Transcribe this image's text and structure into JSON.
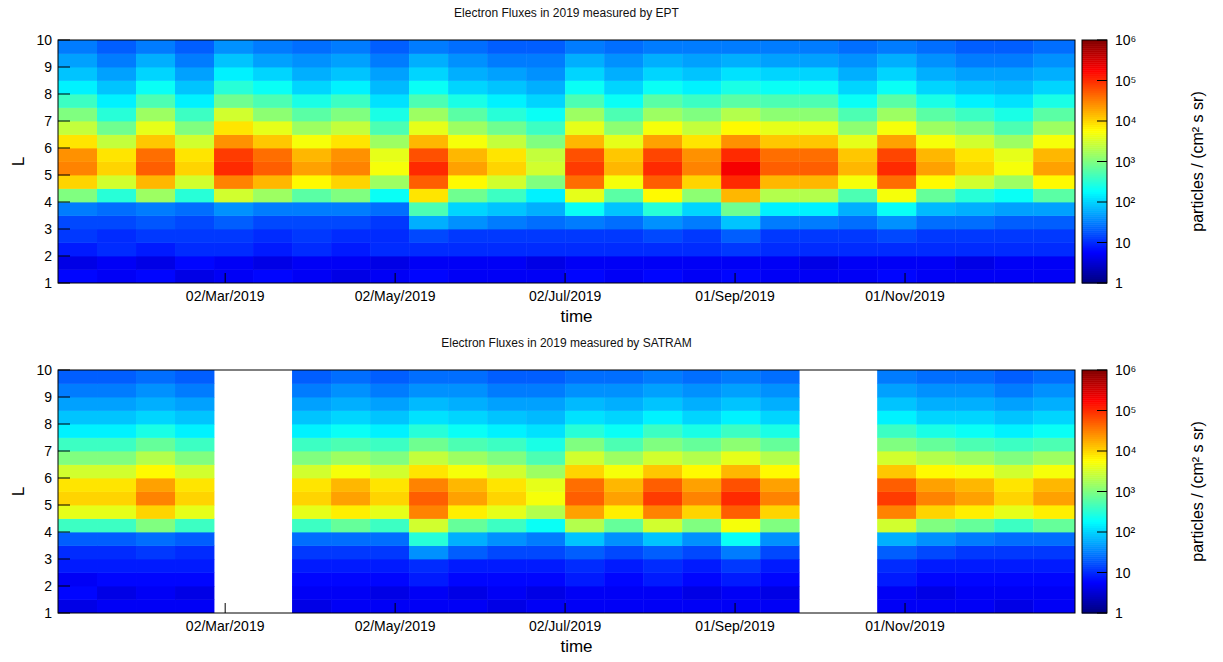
{
  "chart_data": [
    {
      "type": "heatmap",
      "title": "Electron Fluxes in 2019 measured by EPT",
      "x_label": "time",
      "y_label": "L",
      "xlim": [
        "2019-01-01",
        "2020-01-01"
      ],
      "xticks": [
        {
          "value": "2019-03-02",
          "label": "02/Mar/2019"
        },
        {
          "value": "2019-05-02",
          "label": "02/May/2019"
        },
        {
          "value": "2019-07-02",
          "label": "02/Jul/2019"
        },
        {
          "value": "2019-09-01",
          "label": "01/Sep/2019"
        },
        {
          "value": "2019-11-01",
          "label": "01/Nov/2019"
        }
      ],
      "ylim": [
        1,
        10
      ],
      "yticks": [
        1,
        2,
        3,
        4,
        5,
        6,
        7,
        8,
        9,
        10
      ],
      "x_bins": [
        "2019-01-01",
        "2019-01-15",
        "2019-01-29",
        "2019-02-12",
        "2019-02-26",
        "2019-03-12",
        "2019-03-26",
        "2019-04-09",
        "2019-04-23",
        "2019-05-07",
        "2019-05-21",
        "2019-06-04",
        "2019-06-18",
        "2019-07-02",
        "2019-07-16",
        "2019-07-30",
        "2019-08-13",
        "2019-08-27",
        "2019-09-10",
        "2019-09-24",
        "2019-10-08",
        "2019-10-22",
        "2019-11-05",
        "2019-11-19",
        "2019-12-03",
        "2019-12-17",
        "2020-01-01"
      ],
      "y_bins": [
        1,
        1.5,
        2,
        2.5,
        3,
        3.5,
        4,
        4.5,
        5,
        5.5,
        6,
        6.5,
        7,
        7.5,
        8,
        8.5,
        9,
        9.5,
        10
      ],
      "values": [
        [
          6,
          4,
          8,
          12,
          15,
          30,
          1000,
          10000,
          30000,
          25000,
          8000,
          2500,
          1000,
          400,
          150,
          80,
          50,
          30
        ],
        [
          5,
          5,
          10,
          10,
          15,
          25,
          300,
          3000,
          10000,
          8000,
          2500,
          800,
          300,
          150,
          80,
          50,
          30,
          20
        ],
        [
          6,
          4,
          8,
          12,
          18,
          30,
          1500,
          15000,
          50000,
          40000,
          12000,
          4000,
          1500,
          500,
          200,
          100,
          60,
          30
        ],
        [
          4,
          6,
          10,
          12,
          15,
          25,
          300,
          3000,
          10000,
          8000,
          3000,
          1000,
          400,
          150,
          80,
          50,
          30,
          20
        ],
        [
          5,
          5,
          10,
          12,
          20,
          40,
          3000,
          30000,
          100000,
          80000,
          25000,
          8000,
          3000,
          800,
          300,
          150,
          80,
          40
        ],
        [
          6,
          4,
          8,
          10,
          15,
          30,
          1500,
          15000,
          50000,
          40000,
          12000,
          4000,
          1200,
          500,
          200,
          100,
          50,
          30
        ],
        [
          5,
          5,
          10,
          12,
          15,
          30,
          600,
          6000,
          20000,
          15000,
          5000,
          1500,
          600,
          250,
          100,
          60,
          40,
          25
        ],
        [
          4,
          5,
          8,
          10,
          15,
          30,
          1000,
          10000,
          30000,
          25000,
          8000,
          2500,
          1000,
          400,
          150,
          80,
          50,
          30
        ],
        [
          5,
          4,
          10,
          10,
          12,
          25,
          200,
          1500,
          5000,
          4000,
          1500,
          500,
          250,
          120,
          70,
          50,
          30,
          20
        ],
        [
          6,
          5,
          10,
          15,
          60,
          500,
          8000,
          50000,
          100000,
          60000,
          15000,
          4000,
          1500,
          500,
          200,
          100,
          60,
          30
        ],
        [
          5,
          5,
          10,
          12,
          40,
          100,
          800,
          6000,
          20000,
          15000,
          5000,
          1500,
          600,
          250,
          100,
          60,
          40,
          25
        ],
        [
          5,
          5,
          10,
          12,
          30,
          80,
          400,
          3000,
          10000,
          8000,
          2500,
          800,
          300,
          150,
          80,
          50,
          30,
          20
        ],
        [
          5,
          4,
          10,
          12,
          25,
          60,
          150,
          1000,
          3000,
          2500,
          1000,
          400,
          200,
          100,
          60,
          40,
          30,
          20
        ],
        [
          6,
          5,
          10,
          12,
          30,
          200,
          4000,
          40000,
          80000,
          60000,
          15000,
          4000,
          1500,
          500,
          200,
          100,
          60,
          30
        ],
        [
          5,
          5,
          10,
          12,
          25,
          80,
          600,
          5000,
          15000,
          12000,
          4000,
          1200,
          500,
          200,
          100,
          60,
          40,
          25
        ],
        [
          6,
          5,
          10,
          15,
          40,
          300,
          6000,
          50000,
          100000,
          70000,
          20000,
          5000,
          1500,
          600,
          200,
          100,
          60,
          30
        ],
        [
          5,
          5,
          10,
          12,
          30,
          100,
          1200,
          10000,
          30000,
          25000,
          8000,
          2500,
          1000,
          400,
          150,
          80,
          50,
          30
        ],
        [
          6,
          5,
          12,
          20,
          80,
          800,
          15000,
          100000,
          200000,
          100000,
          25000,
          6000,
          2000,
          600,
          250,
          120,
          60,
          30
        ],
        [
          5,
          5,
          10,
          12,
          30,
          150,
          2000,
          15000,
          50000,
          40000,
          12000,
          4000,
          1200,
          500,
          200,
          100,
          50,
          30
        ],
        [
          5,
          4,
          10,
          12,
          30,
          150,
          2000,
          15000,
          50000,
          40000,
          12000,
          4000,
          1200,
          500,
          200,
          100,
          50,
          30
        ],
        [
          5,
          5,
          10,
          12,
          25,
          60,
          500,
          5000,
          15000,
          12000,
          4000,
          1200,
          500,
          200,
          100,
          60,
          40,
          25
        ],
        [
          6,
          5,
          10,
          15,
          40,
          200,
          5000,
          40000,
          100000,
          70000,
          20000,
          5000,
          1500,
          600,
          200,
          100,
          60,
          30
        ],
        [
          5,
          5,
          10,
          12,
          25,
          70,
          700,
          6000,
          20000,
          15000,
          5000,
          1500,
          600,
          250,
          100,
          60,
          40,
          25
        ],
        [
          5,
          4,
          10,
          12,
          25,
          60,
          300,
          3000,
          10000,
          8000,
          3000,
          1000,
          400,
          150,
          80,
          50,
          30,
          20
        ],
        [
          5,
          5,
          10,
          12,
          20,
          50,
          200,
          1500,
          5000,
          4000,
          1500,
          500,
          250,
          120,
          70,
          50,
          30,
          20
        ],
        [
          5,
          5,
          10,
          12,
          20,
          50,
          600,
          6000,
          20000,
          15000,
          5000,
          1500,
          600,
          250,
          100,
          60,
          40,
          25
        ]
      ],
      "colorbar": {
        "label": "particles / (cm² s sr)",
        "log": true,
        "range": [
          1,
          1000000
        ],
        "ticks": [
          1,
          10,
          {
            "value": 100,
            "label": "10²"
          },
          {
            "value": 1000,
            "label": "10³"
          },
          {
            "value": 10000,
            "label": "10⁴"
          },
          {
            "value": 100000,
            "label": "10⁵"
          },
          {
            "value": 1000000,
            "label": "10⁶"
          }
        ]
      }
    },
    {
      "type": "heatmap",
      "title": "Electron Fluxes in 2019 measured by SATRAM",
      "x_label": "time",
      "y_label": "L",
      "xlim": [
        "2019-01-01",
        "2020-01-01"
      ],
      "xticks": [
        {
          "value": "2019-03-02",
          "label": "02/Mar/2019"
        },
        {
          "value": "2019-05-02",
          "label": "02/May/2019"
        },
        {
          "value": "2019-07-02",
          "label": "02/Jul/2019"
        },
        {
          "value": "2019-09-01",
          "label": "01/Sep/2019"
        },
        {
          "value": "2019-11-01",
          "label": "01/Nov/2019"
        }
      ],
      "ylim": [
        1,
        10
      ],
      "yticks": [
        1,
        2,
        3,
        4,
        5,
        6,
        7,
        8,
        9,
        10
      ],
      "x_bins": [
        "2019-01-01",
        "2019-01-15",
        "2019-01-29",
        "2019-02-12",
        "2019-02-26",
        "2019-03-12",
        "2019-03-26",
        "2019-04-09",
        "2019-04-23",
        "2019-05-07",
        "2019-05-21",
        "2019-06-04",
        "2019-06-18",
        "2019-07-02",
        "2019-07-16",
        "2019-07-30",
        "2019-08-13",
        "2019-08-27",
        "2019-09-10",
        "2019-09-24",
        "2019-10-08",
        "2019-10-22",
        "2019-11-05",
        "2019-11-19",
        "2019-12-03",
        "2019-12-17",
        "2020-01-01"
      ],
      "y_bins": [
        1,
        1.5,
        2,
        2.5,
        3,
        3.5,
        4,
        4.5,
        5,
        5.5,
        6,
        6.5,
        7,
        7.5,
        8,
        8.5,
        9,
        9.5,
        10
      ],
      "values": [
        [
          4,
          6,
          5,
          8,
          10,
          20,
          400,
          4000,
          10000,
          8000,
          3000,
          1000,
          400,
          150,
          80,
          50,
          30,
          20
        ],
        [
          5,
          4,
          6,
          8,
          10,
          20,
          400,
          4000,
          10000,
          8000,
          3000,
          1000,
          400,
          150,
          80,
          50,
          30,
          20
        ],
        [
          5,
          5,
          6,
          8,
          12,
          25,
          1000,
          10000,
          30000,
          20000,
          6000,
          2000,
          700,
          250,
          100,
          60,
          40,
          25
        ],
        [
          5,
          4,
          6,
          8,
          10,
          20,
          400,
          4000,
          10000,
          8000,
          3000,
          1000,
          400,
          150,
          80,
          50,
          30,
          20
        ],
        null,
        null,
        [
          4,
          5,
          6,
          8,
          12,
          25,
          400,
          4000,
          10000,
          8000,
          3000,
          1000,
          400,
          150,
          80,
          50,
          30,
          20
        ],
        [
          5,
          5,
          6,
          8,
          12,
          25,
          700,
          7000,
          20000,
          15000,
          5000,
          1500,
          500,
          200,
          100,
          60,
          40,
          25
        ],
        [
          5,
          4,
          6,
          8,
          12,
          25,
          400,
          4000,
          10000,
          8000,
          3000,
          1000,
          400,
          150,
          80,
          50,
          30,
          20
        ],
        [
          5,
          5,
          8,
          10,
          40,
          300,
          3000,
          30000,
          50000,
          30000,
          8000,
          2500,
          800,
          300,
          120,
          70,
          40,
          25
        ],
        [
          5,
          4,
          6,
          8,
          20,
          60,
          700,
          7000,
          20000,
          15000,
          5000,
          1500,
          500,
          200,
          100,
          60,
          40,
          25
        ],
        [
          4,
          5,
          6,
          8,
          15,
          40,
          400,
          4000,
          10000,
          8000,
          3000,
          1000,
          400,
          150,
          80,
          50,
          30,
          20
        ],
        [
          5,
          4,
          6,
          8,
          15,
          30,
          200,
          2000,
          5000,
          4000,
          1500,
          500,
          250,
          120,
          70,
          50,
          30,
          20
        ],
        [
          5,
          5,
          8,
          10,
          20,
          80,
          2000,
          20000,
          50000,
          40000,
          10000,
          3000,
          1000,
          300,
          120,
          70,
          40,
          25
        ],
        [
          5,
          5,
          6,
          8,
          15,
          40,
          700,
          7000,
          20000,
          15000,
          5000,
          1500,
          500,
          200,
          100,
          60,
          40,
          25
        ],
        [
          5,
          5,
          8,
          10,
          20,
          80,
          3000,
          30000,
          80000,
          50000,
          12000,
          3000,
          1000,
          400,
          150,
          80,
          50,
          30
        ],
        [
          5,
          4,
          6,
          8,
          15,
          40,
          1000,
          10000,
          30000,
          20000,
          6000,
          2000,
          700,
          250,
          100,
          60,
          40,
          25
        ],
        [
          5,
          5,
          8,
          12,
          30,
          200,
          5000,
          50000,
          100000,
          60000,
          15000,
          4000,
          1200,
          400,
          150,
          80,
          50,
          30
        ],
        [
          5,
          4,
          6,
          8,
          15,
          40,
          1000,
          10000,
          30000,
          20000,
          6000,
          2000,
          700,
          250,
          100,
          60,
          40,
          25
        ],
        null,
        null,
        [
          5,
          5,
          8,
          10,
          20,
          60,
          3000,
          30000,
          80000,
          50000,
          12000,
          3000,
          1000,
          400,
          150,
          80,
          50,
          30
        ],
        [
          5,
          4,
          6,
          8,
          15,
          40,
          1000,
          10000,
          30000,
          20000,
          6000,
          2000,
          700,
          250,
          100,
          60,
          40,
          25
        ],
        [
          5,
          5,
          6,
          8,
          12,
          30,
          700,
          7000,
          20000,
          15000,
          5000,
          1500,
          500,
          200,
          100,
          60,
          40,
          25
        ],
        [
          4,
          5,
          6,
          8,
          12,
          25,
          400,
          4000,
          10000,
          8000,
          3000,
          1000,
          400,
          150,
          80,
          50,
          30,
          20
        ],
        [
          5,
          5,
          6,
          8,
          12,
          25,
          700,
          7000,
          20000,
          15000,
          5000,
          1500,
          500,
          200,
          100,
          60,
          40,
          25
        ]
      ],
      "colorbar": {
        "label": "particles / (cm² s sr)",
        "log": true,
        "range": [
          1,
          1000000
        ],
        "ticks": [
          1,
          10,
          {
            "value": 100,
            "label": "10²"
          },
          {
            "value": 1000,
            "label": "10³"
          },
          {
            "value": 10000,
            "label": "10⁴"
          },
          {
            "value": 100000,
            "label": "10⁵"
          },
          {
            "value": 1000000,
            "label": "10⁶"
          }
        ]
      }
    }
  ]
}
